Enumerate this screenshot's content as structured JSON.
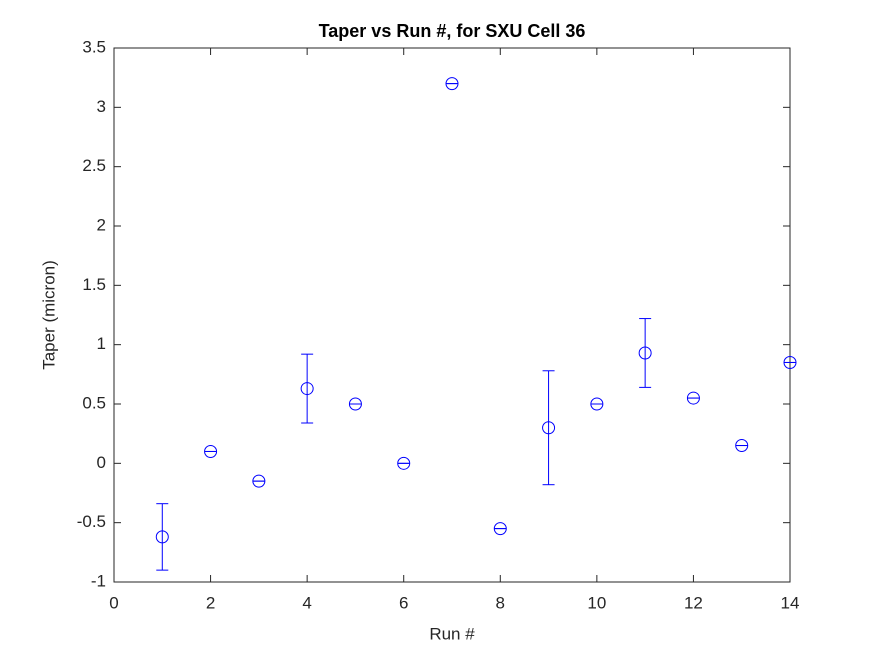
{
  "chart_data": {
    "type": "errorbar",
    "title": "Taper vs Run #, for SXU Cell 36",
    "xlabel": "Run #",
    "ylabel": "Taper (micron)",
    "x": [
      1,
      2,
      3,
      4,
      5,
      6,
      7,
      8,
      9,
      10,
      11,
      12,
      13,
      14
    ],
    "values": [
      -0.62,
      0.1,
      -0.15,
      0.63,
      0.5,
      0,
      3.2,
      -0.55,
      0.3,
      0.5,
      0.93,
      0.55,
      0.15,
      0.85
    ],
    "errors": [
      0.28,
      0,
      0,
      0.29,
      0,
      0,
      0,
      0,
      0.48,
      0,
      0.29,
      0,
      0,
      0
    ],
    "color": "#0000ff",
    "xlim": [
      0,
      14
    ],
    "xticks": [
      0,
      2,
      4,
      6,
      8,
      10,
      12,
      14
    ],
    "ylim": [
      -1,
      3.5
    ],
    "yticks": [
      -1,
      -0.5,
      0,
      0.5,
      1,
      1.5,
      2,
      2.5,
      3,
      3.5
    ],
    "grid": false
  }
}
